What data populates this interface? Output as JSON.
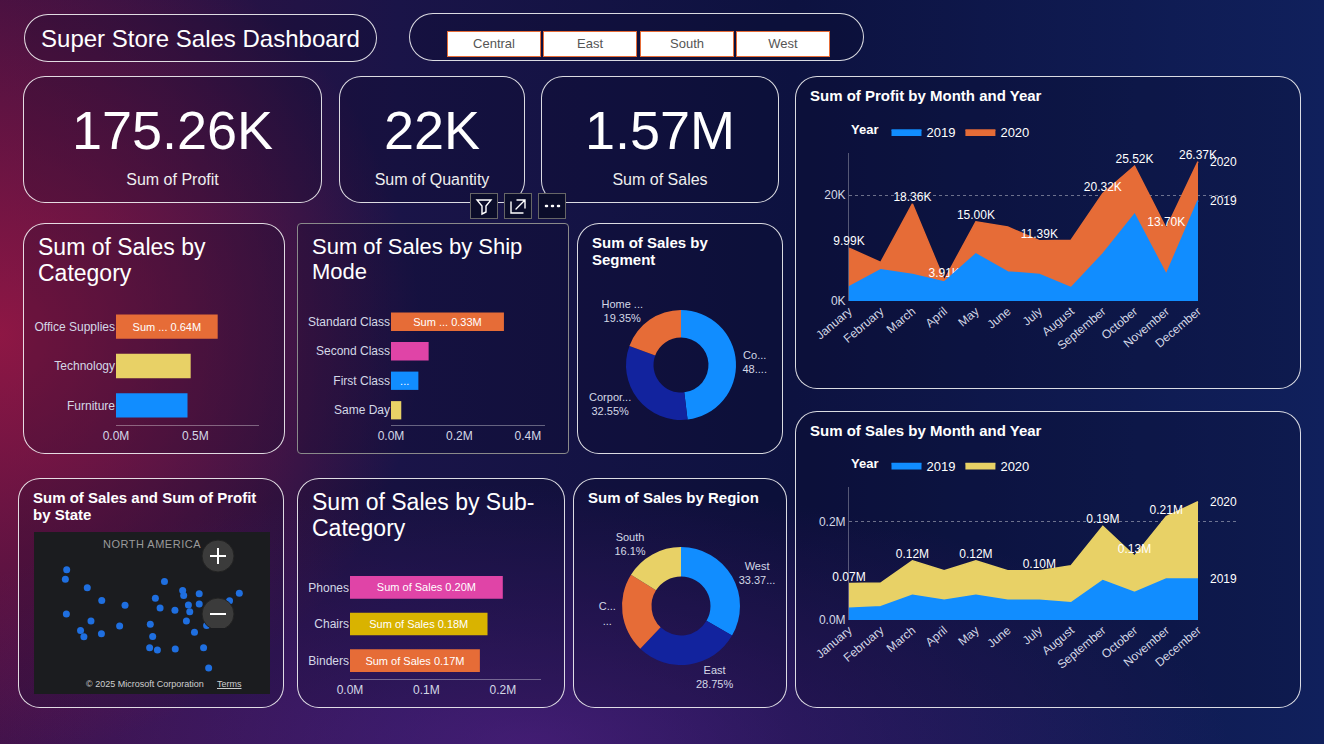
{
  "title": "Super Store Sales Dashboard",
  "slicer": [
    "Central",
    "East",
    "South",
    "West"
  ],
  "cards": [
    {
      "value": "175.26K",
      "label": "Sum of Profit"
    },
    {
      "value": "22K",
      "label": "Sum of Quantity"
    },
    {
      "value": "1.57M",
      "label": "Sum of Sales"
    }
  ],
  "chart_data": [
    {
      "type": "bar",
      "title": "Sum of Sales by Category",
      "orientation": "horizontal",
      "categories": [
        "Office Supplies",
        "Technology",
        "Furniture"
      ],
      "values": [
        0.64,
        0.47,
        0.45
      ],
      "colors": [
        "#e66c37",
        "#e8d166",
        "#118dff"
      ],
      "data_labels": true,
      "value_labels": [
        "Sum ... 0.64M",
        null,
        null
      ],
      "xlim": [
        0,
        0.9
      ],
      "xticks": [
        {
          "value": 0,
          "label": "0.0M"
        },
        {
          "value": 0.5,
          "label": "0.5M"
        }
      ],
      "grid": false
    },
    {
      "type": "bar",
      "title": "Sum of Sales by Ship Mode",
      "orientation": "horizontal",
      "categories": [
        "Standard Class",
        "Second Class",
        "First Class",
        "Same Day"
      ],
      "values": [
        0.33,
        0.11,
        0.08,
        0.03
      ],
      "colors": [
        "#e66c37",
        "#e044a7",
        "#118dff",
        "#e8d166"
      ],
      "data_labels": true,
      "value_labels": [
        "Sum ... 0.33M",
        null,
        "...",
        null
      ],
      "xlim": [
        0,
        0.45
      ],
      "xticks": [
        {
          "value": 0,
          "label": "0.0M"
        },
        {
          "value": 0.2,
          "label": "0.2M"
        },
        {
          "value": 0.4,
          "label": "0.4M"
        }
      ],
      "grid": false
    },
    {
      "type": "pie",
      "title": "Sum of Sales by Segment",
      "categories": [
        "Co...",
        "Corpor...",
        "Home ..."
      ],
      "values": [
        48.1,
        32.55,
        19.35
      ],
      "value_labels": [
        "48....",
        "32.55%",
        "19.35%"
      ],
      "colors": [
        "#118dff",
        "#12239e",
        "#e66c37"
      ],
      "data_labels": true
    },
    {
      "type": "map",
      "title": "Sum of Sales and Sum of Profit by State",
      "x": [
        -122.3,
        -122.7,
        -122.4,
        -118.2,
        -117.2,
        -115.1,
        -112.0,
        -111.9,
        -105.0,
        -106.6,
        -96.8,
        -95.4,
        -97.7,
        -97.5,
        -94.6,
        -93.3,
        -87.6,
        -83.0,
        -90.2,
        -86.8,
        -84.4,
        -80.2,
        -81.7,
        -80.8,
        -77.0,
        -75.2,
        -74.0,
        -71.1,
        -83.0,
        -86.2,
        -85.8,
        -90.1,
        -116.2,
        -96.0,
        -87.9,
        -77.4
      ],
      "y": [
        47.6,
        45.5,
        37.8,
        34.1,
        32.7,
        36.2,
        33.4,
        40.8,
        39.7,
        35.1,
        32.8,
        29.8,
        30.3,
        35.5,
        39.1,
        45.0,
        41.9,
        42.3,
        38.6,
        36.2,
        33.7,
        25.8,
        30.3,
        35.2,
        38.9,
        40.0,
        40.7,
        42.4,
        40.0,
        39.8,
        38.3,
        30.0,
        43.6,
        41.3,
        43.0,
        37.5
      ],
      "xlim": [
        -132,
        -62
      ],
      "ylim": [
        20,
        56
      ],
      "tick_labels": false,
      "color": "#1f6fe0",
      "annotations": [
        "NORTH AMERICA",
        "© 2025 Microsoft Corporation",
        "Terms"
      ]
    },
    {
      "type": "bar",
      "title": "Sum of Sales by Sub-Category",
      "orientation": "horizontal",
      "categories": [
        "Phones",
        "Chairs",
        "Binders"
      ],
      "values": [
        0.2,
        0.18,
        0.17
      ],
      "colors": [
        "#e044a7",
        "#d9b300",
        "#e66c37"
      ],
      "data_labels": true,
      "value_labels": [
        "Sum of Sales 0.20M",
        "Sum of Sales 0.18M",
        "Sum of Sales 0.17M"
      ],
      "xlim": [
        0,
        0.25
      ],
      "xticks": [
        {
          "value": 0,
          "label": "0.0M"
        },
        {
          "value": 0.1,
          "label": "0.1M"
        },
        {
          "value": 0.2,
          "label": "0.2M"
        }
      ],
      "grid": false
    },
    {
      "type": "pie",
      "title": "Sum of Sales by Region",
      "categories": [
        "West",
        "East",
        "C...",
        "South"
      ],
      "values": [
        33.37,
        28.75,
        21.78,
        16.1
      ],
      "value_labels": [
        "33.37...",
        "28.75%",
        "...",
        "16.1%"
      ],
      "colors": [
        "#118dff",
        "#12239e",
        "#e66c37",
        "#e8d166"
      ],
      "data_labels": true
    },
    {
      "type": "area",
      "title": "Sum of Profit by Month and Year",
      "categories": [
        "January",
        "February",
        "March",
        "April",
        "May",
        "June",
        "July",
        "August",
        "September",
        "October",
        "November",
        "December"
      ],
      "series": [
        {
          "name": "2019",
          "color": "#118dff",
          "values": [
            2.7,
            5.9,
            5.0,
            3.6,
            8.9,
            5.5,
            5.0,
            2.5,
            8.9,
            16.4,
            5.0,
            19.0
          ]
        },
        {
          "name": "2020",
          "color": "#e66c37",
          "values": [
            9.99,
            7.3,
            18.36,
            3.91,
            15.0,
            14.0,
            11.39,
            11.5,
            20.32,
            25.52,
            13.7,
            26.37
          ],
          "value_labels": [
            "9.99K",
            null,
            "18.36K",
            "3.91K",
            "15.00K",
            null,
            "11.39K",
            null,
            "20.32K",
            "25.52K",
            "13.70K",
            "26.37K"
          ]
        }
      ],
      "data_labels": true,
      "legend": "top-left",
      "legend_title": "Year",
      "ylim": [
        0,
        28
      ],
      "yticks": [
        {
          "value": 0,
          "label": "0K"
        },
        {
          "value": 20,
          "label": "20K"
        }
      ],
      "grid": true
    },
    {
      "type": "area",
      "title": "Sum of Sales by Month and Year",
      "categories": [
        "January",
        "February",
        "March",
        "April",
        "May",
        "June",
        "July",
        "August",
        "September",
        "October",
        "November",
        "December"
      ],
      "series": [
        {
          "name": "2019",
          "color": "#118dff",
          "values": [
            0.024,
            0.027,
            0.05,
            0.04,
            0.05,
            0.04,
            0.04,
            0.035,
            0.08,
            0.056,
            0.083,
            0.083
          ]
        },
        {
          "name": "2020",
          "color": "#e8d166",
          "values": [
            0.074,
            0.075,
            0.12,
            0.1,
            0.12,
            0.1,
            0.1,
            0.11,
            0.19,
            0.13,
            0.21,
            0.24
          ],
          "value_labels": [
            "0.07M",
            null,
            "0.12M",
            null,
            "0.12M",
            null,
            "0.10M",
            null,
            "0.19M",
            "0.13M",
            "0.21M",
            null
          ]
        }
      ],
      "data_labels": true,
      "legend": "top-left",
      "legend_title": "Year",
      "ylim": [
        0,
        0.27
      ],
      "yticks": [
        {
          "value": 0,
          "label": "0.0M"
        },
        {
          "value": 0.2,
          "label": "0.2M"
        }
      ],
      "grid": true
    }
  ]
}
